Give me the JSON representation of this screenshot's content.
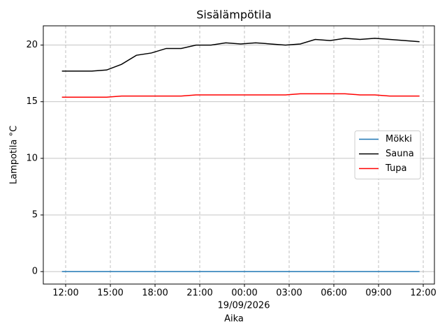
{
  "chart_data": {
    "type": "line",
    "title": "Sisälämpötila",
    "xlabel": "Aika",
    "ylabel": "Lampotila °C",
    "date_label": "19/09/2026",
    "x": [
      11.75,
      12.75,
      13.75,
      14.75,
      15.75,
      16.75,
      17.75,
      18.75,
      19.75,
      20.75,
      21.75,
      22.75,
      23.75,
      24.75,
      25.75,
      26.75,
      27.75,
      28.75,
      29.75,
      30.75,
      31.75,
      32.75,
      33.75,
      34.75,
      35.75
    ],
    "series": [
      {
        "name": "Mökki",
        "color": "#1f77b4",
        "values": [
          0,
          0,
          0,
          0,
          0,
          0,
          0,
          0,
          0,
          0,
          0,
          0,
          0,
          0,
          0,
          0,
          0,
          0,
          0,
          0,
          0,
          0,
          0,
          0,
          0
        ]
      },
      {
        "name": "Sauna",
        "color": "#000000",
        "values": [
          17.7,
          17.7,
          17.7,
          17.8,
          18.3,
          19.1,
          19.3,
          19.7,
          19.7,
          20.0,
          20.0,
          20.2,
          20.1,
          20.2,
          20.1,
          20.0,
          20.1,
          20.5,
          20.4,
          20.6,
          20.5,
          20.6,
          20.5,
          20.4,
          20.3
        ]
      },
      {
        "name": "Tupa",
        "color": "#ff0000",
        "values": [
          15.4,
          15.4,
          15.4,
          15.4,
          15.5,
          15.5,
          15.5,
          15.5,
          15.5,
          15.6,
          15.6,
          15.6,
          15.6,
          15.6,
          15.6,
          15.6,
          15.7,
          15.7,
          15.7,
          15.7,
          15.6,
          15.6,
          15.5,
          15.5,
          15.5
        ]
      }
    ],
    "xlim": [
      10.5,
      36.75
    ],
    "xticks": [
      {
        "value": 12,
        "label": "12:00"
      },
      {
        "value": 15,
        "label": "15:00"
      },
      {
        "value": 18,
        "label": "18:00"
      },
      {
        "value": 21,
        "label": "21:00"
      },
      {
        "value": 24,
        "label": "00:00"
      },
      {
        "value": 27,
        "label": "03:00"
      },
      {
        "value": 30,
        "label": "06:00"
      },
      {
        "value": 33,
        "label": "09:00"
      },
      {
        "value": 36,
        "label": "12:00"
      }
    ],
    "ylim": [
      -1.1,
      21.7
    ],
    "yticks": [
      0,
      5,
      10,
      15,
      20
    ],
    "grid": true,
    "legend": "center right"
  }
}
